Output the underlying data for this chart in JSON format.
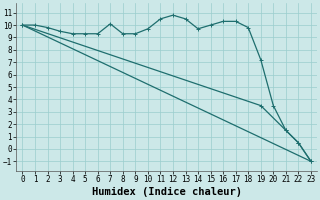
{
  "xlabel": "Humidex (Indice chaleur)",
  "xlim": [
    -0.5,
    23.5
  ],
  "ylim": [
    -1.8,
    11.8
  ],
  "xticks": [
    0,
    1,
    2,
    3,
    4,
    5,
    6,
    7,
    8,
    9,
    10,
    11,
    12,
    13,
    14,
    15,
    16,
    17,
    18,
    19,
    20,
    21,
    22,
    23
  ],
  "yticks": [
    -1,
    0,
    1,
    2,
    3,
    4,
    5,
    6,
    7,
    8,
    9,
    10,
    11
  ],
  "bg_color": "#cce8e8",
  "grid_color": "#9bcece",
  "line_color": "#1e6e6e",
  "line1_x": [
    0,
    1,
    2,
    3,
    4,
    5,
    6,
    7,
    8,
    9,
    10,
    11,
    12,
    13,
    14,
    15,
    16,
    17,
    18,
    19,
    20,
    21,
    22,
    23
  ],
  "line1_y": [
    10,
    10,
    9.8,
    9.5,
    9.3,
    9.3,
    9.3,
    10.1,
    9.3,
    9.3,
    9.7,
    10.5,
    10.8,
    10.5,
    9.7,
    10.0,
    10.3,
    10.3,
    9.8,
    7.2,
    3.5,
    1.5,
    0.5,
    -1.0
  ],
  "line2_x": [
    0,
    23
  ],
  "line2_y": [
    10,
    -1.0
  ],
  "line3_x": [
    0,
    19,
    21,
    22,
    23
  ],
  "line3_y": [
    10,
    3.5,
    1.5,
    0.5,
    -1.0
  ],
  "font_family": "monospace",
  "tick_fontsize": 5.5,
  "label_fontsize": 7.5,
  "linewidth": 0.9,
  "marker_size": 2.5
}
